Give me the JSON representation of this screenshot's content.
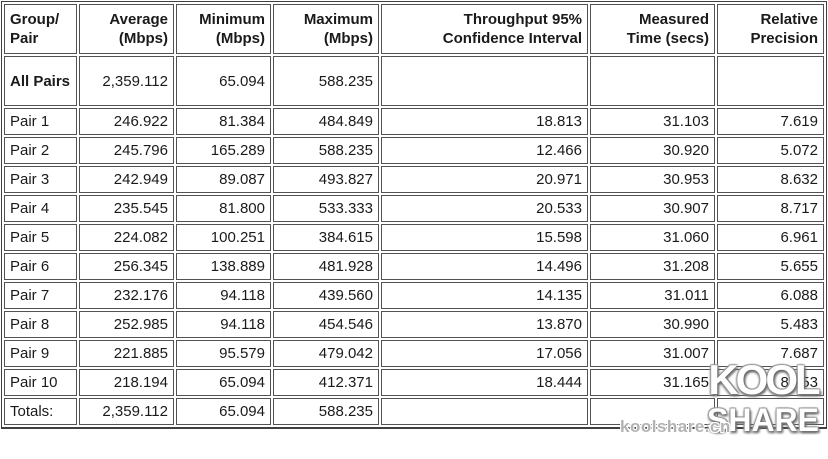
{
  "table": {
    "columns": [
      {
        "line1": "Group/",
        "line2": "Pair"
      },
      {
        "line1": "Average",
        "line2": "(Mbps)"
      },
      {
        "line1": "Minimum",
        "line2": "(Mbps)"
      },
      {
        "line1": "Maximum",
        "line2": "(Mbps)"
      },
      {
        "line1": "Throughput 95%",
        "line2": "Confidence Interval"
      },
      {
        "line1": "Measured",
        "line2": "Time (secs)"
      },
      {
        "line1": "Relative",
        "line2": "Precision"
      }
    ],
    "rows": [
      {
        "label_bold": true,
        "tall": true,
        "cells": [
          "All Pairs",
          "2,359.112",
          "65.094",
          "588.235",
          "",
          "",
          ""
        ]
      },
      {
        "label_bold": false,
        "tall": false,
        "cells": [
          "Pair 1",
          "246.922",
          "81.384",
          "484.849",
          "18.813",
          "31.103",
          "7.619"
        ]
      },
      {
        "label_bold": false,
        "tall": false,
        "cells": [
          "Pair 2",
          "245.796",
          "165.289",
          "588.235",
          "12.466",
          "30.920",
          "5.072"
        ]
      },
      {
        "label_bold": false,
        "tall": false,
        "cells": [
          "Pair 3",
          "242.949",
          "89.087",
          "493.827",
          "20.971",
          "30.953",
          "8.632"
        ]
      },
      {
        "label_bold": false,
        "tall": false,
        "cells": [
          "Pair 4",
          "235.545",
          "81.800",
          "533.333",
          "20.533",
          "30.907",
          "8.717"
        ]
      },
      {
        "label_bold": false,
        "tall": false,
        "cells": [
          "Pair 5",
          "224.082",
          "100.251",
          "384.615",
          "15.598",
          "31.060",
          "6.961"
        ]
      },
      {
        "label_bold": false,
        "tall": false,
        "cells": [
          "Pair 6",
          "256.345",
          "138.889",
          "481.928",
          "14.496",
          "31.208",
          "5.655"
        ]
      },
      {
        "label_bold": false,
        "tall": false,
        "cells": [
          "Pair 7",
          "232.176",
          "94.118",
          "439.560",
          "14.135",
          "31.011",
          "6.088"
        ]
      },
      {
        "label_bold": false,
        "tall": false,
        "cells": [
          "Pair 8",
          "252.985",
          "94.118",
          "454.546",
          "13.870",
          "30.990",
          "5.483"
        ]
      },
      {
        "label_bold": false,
        "tall": false,
        "cells": [
          "Pair 9",
          "221.885",
          "95.579",
          "479.042",
          "17.056",
          "31.007",
          "7.687"
        ]
      },
      {
        "label_bold": false,
        "tall": false,
        "cells": [
          "Pair 10",
          "218.194",
          "65.094",
          "412.371",
          "18.444",
          "31.165",
          "8.453"
        ]
      },
      {
        "label_bold": false,
        "tall": false,
        "cells": [
          "Totals:",
          "2,359.112",
          "65.094",
          "588.235",
          "",
          "",
          ""
        ]
      }
    ]
  },
  "watermark": {
    "logo_line1": "KOOL",
    "logo_line2": "SHARE",
    "url": "koolshare.cn"
  },
  "colors": {
    "cell_border": "#525252",
    "outer_border": "#404040",
    "text": "#1a1a1a",
    "watermark_url_text": "#b3b3b3"
  }
}
